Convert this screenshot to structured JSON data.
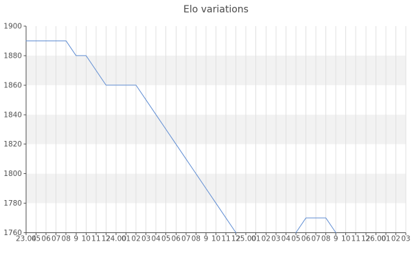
{
  "chart_data": {
    "type": "line",
    "title": "Elo variations",
    "xlabel": "",
    "ylabel": "",
    "legend": "none",
    "grid": "vertical",
    "x_labels": [
      "23.04",
      "05",
      "06",
      "07",
      "08",
      "9",
      "10",
      "11",
      "12",
      "24.00",
      "01",
      "02",
      "03",
      "04",
      "05",
      "06",
      "07",
      "08",
      "9",
      "10",
      "11",
      "12",
      "25.00",
      "01",
      "02",
      "03",
      "04",
      "05",
      "06",
      "07",
      "08",
      "9",
      "10",
      "11",
      "12",
      "26.00",
      "01",
      "02",
      "03"
    ],
    "values": [
      1890,
      1890,
      1890,
      1890,
      1890,
      1880,
      1880,
      1870,
      1860,
      1860,
      1860,
      1860,
      1850,
      1840,
      1830,
      1820,
      1810,
      1800,
      1790,
      1780,
      1770,
      1760,
      null,
      null,
      null,
      null,
      null,
      1760,
      1770,
      1770,
      1770,
      1760,
      null,
      null,
      null,
      null,
      null,
      null,
      null
    ],
    "ylim": [
      1760,
      1900
    ],
    "yticks": [
      1760,
      1780,
      1800,
      1820,
      1840,
      1860,
      1880,
      1900
    ],
    "shaded_bands": [
      [
        1860,
        1880
      ],
      [
        1820,
        1840
      ],
      [
        1780,
        1800
      ]
    ],
    "colors": {
      "line": "#5f8dd3",
      "band": "#f2f2f2",
      "gridline": "#e0e0e0",
      "axis": "#4d4d4d",
      "tick_label": "#525252",
      "title": "#4a4a4a",
      "background": "#ffffff"
    }
  }
}
